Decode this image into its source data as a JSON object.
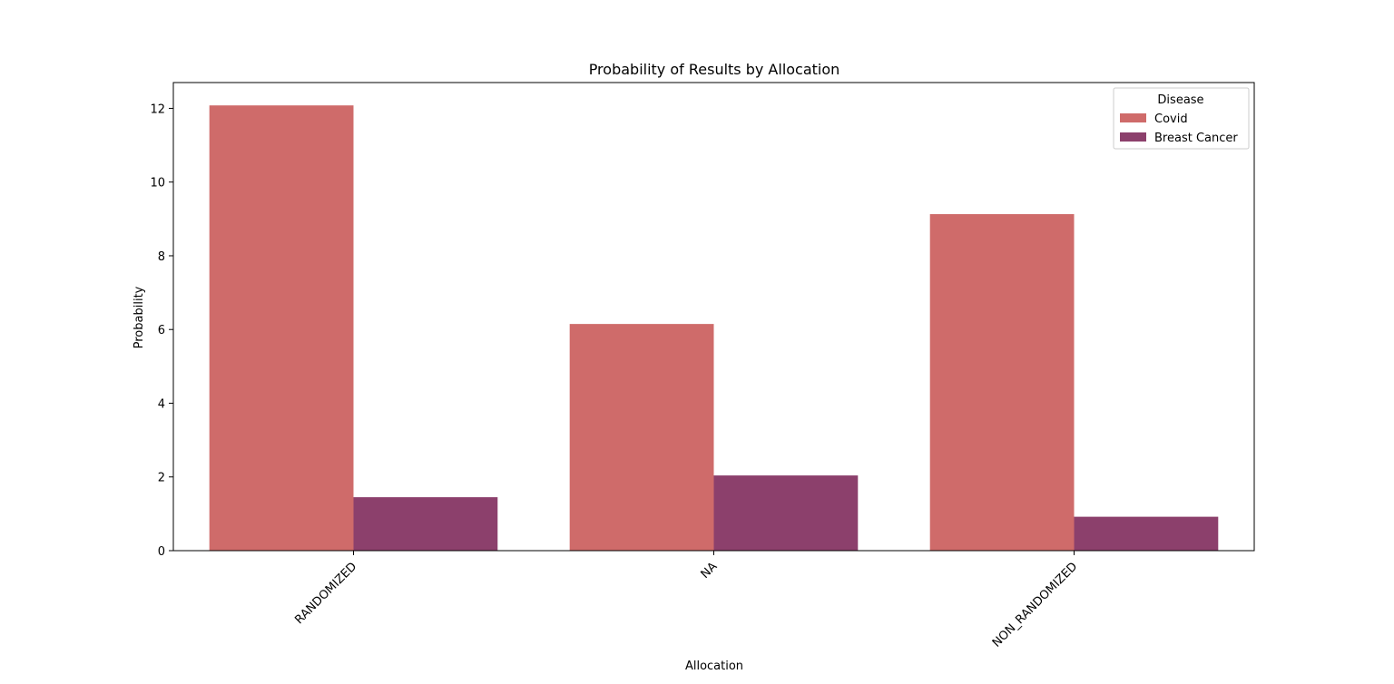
{
  "chart_data": {
    "type": "bar",
    "title": "Probability of Results by Allocation",
    "xlabel": "Allocation",
    "ylabel": "Probability",
    "categories": [
      "RANDOMIZED",
      "NA",
      "NON_RANDOMIZED"
    ],
    "series": [
      {
        "name": "Covid",
        "color": "#cf6b6a",
        "values": [
          12.08,
          6.15,
          9.13
        ]
      },
      {
        "name": "Breast Cancer",
        "color": "#8c406c",
        "values": [
          1.45,
          2.04,
          0.92
        ]
      }
    ],
    "ylim": [
      0,
      12.7
    ],
    "yticks": [
      0,
      2,
      4,
      6,
      8,
      10,
      12
    ],
    "grid": false,
    "legend": {
      "title": "Disease",
      "placement": "top-right"
    }
  }
}
